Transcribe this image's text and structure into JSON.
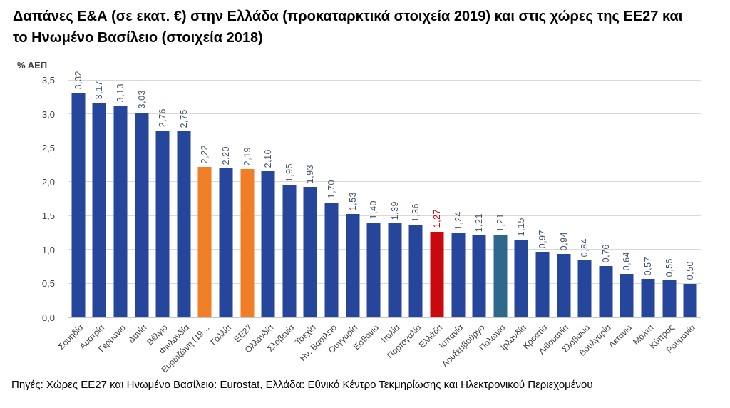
{
  "page": {
    "background": "#ffffff"
  },
  "chart_data": {
    "type": "bar",
    "title": "Δαπάνες Ε&Α (σε εκατ. €) στην Ελλάδα (προκαταρκτικά στοιχεία 2019) και στις χώρες της ΕΕ27 και το Ηνωμένο Βασίλειο (στοιχεία 2018)",
    "ylabel": "% ΑΕΠ",
    "xlabel": "",
    "source": "Πηγές: Χώρες ΕΕ27 και Ηνωμένο Βασίλειο: Eurostat, Ελλάδα: Εθνικό Κέντρο Τεκμηρίωσης και Ηλεκτρονικού Περιεχομένου",
    "ylim": [
      0,
      3.5
    ],
    "ytick_step": 0.5,
    "ytick_labels": [
      "0,0",
      "0,5",
      "1,0",
      "1,5",
      "2,0",
      "2,5",
      "3,0",
      "3,5"
    ],
    "grid": true,
    "legend": false,
    "categories": [
      "Σουηδία",
      "Αυστρία",
      "Γερμανία",
      "Δανία",
      "Βέλγιο",
      "Φινλανδία",
      "Ευρωζώνη (19…",
      "Γαλλία",
      "ΕΕ27",
      "Ολλανδία",
      "Σλοβενία",
      "Τσεχία",
      "Ην. Βασίλειο",
      "Ουγγαρία",
      "Εσθονία",
      "Ιταλία",
      "Πορτογαλία",
      "Ελλάδα",
      "Ισπανία",
      "Λουξεμβούργο",
      "Πολωνία",
      "Ιρλανδία",
      "Κροατία",
      "Λιθουανία",
      "Σλοβακία",
      "Βουλγαρία",
      "Λετονία",
      "Μάλτα",
      "Κύπρος",
      "Ρουμανία"
    ],
    "values": [
      3.32,
      3.17,
      3.13,
      3.03,
      2.76,
      2.75,
      2.22,
      2.2,
      2.19,
      2.16,
      1.95,
      1.93,
      1.7,
      1.53,
      1.4,
      1.39,
      1.36,
      1.27,
      1.24,
      1.21,
      1.21,
      1.15,
      0.97,
      0.94,
      0.84,
      0.76,
      0.64,
      0.57,
      0.55,
      0.5
    ],
    "value_labels": [
      "3,32",
      "3,17",
      "3,13",
      "3,03",
      "2,76",
      "2,75",
      "2,22",
      "2,20",
      "2,19",
      "2,16",
      "1,95",
      "1,93",
      "1,70",
      "1,53",
      "1,40",
      "1,39",
      "1,36",
      "1,27",
      "1,24",
      "1,21",
      "1,21",
      "1,15",
      "0,97",
      "0,94",
      "0,84",
      "0,76",
      "0,64",
      "0,57",
      "0,55",
      "0,50"
    ],
    "bar_colors": [
      "blue",
      "blue",
      "blue",
      "blue",
      "blue",
      "blue",
      "orange",
      "blue",
      "orange",
      "blue",
      "blue",
      "blue",
      "blue",
      "blue",
      "blue",
      "blue",
      "blue",
      "red",
      "blue",
      "blue",
      "teal",
      "blue",
      "blue",
      "blue",
      "blue",
      "blue",
      "blue",
      "blue",
      "blue",
      "blue"
    ],
    "palette": {
      "blue": "#25469A",
      "orange": "#F07E26",
      "red": "#C80A0F",
      "teal": "#2E688A"
    },
    "value_label_color": "#44546A",
    "value_label_color_highlight": "#C80A0F",
    "grid_color": "#D9D9D9",
    "axis_line_color": "#C6C6C6",
    "tick_color": "#404040"
  }
}
